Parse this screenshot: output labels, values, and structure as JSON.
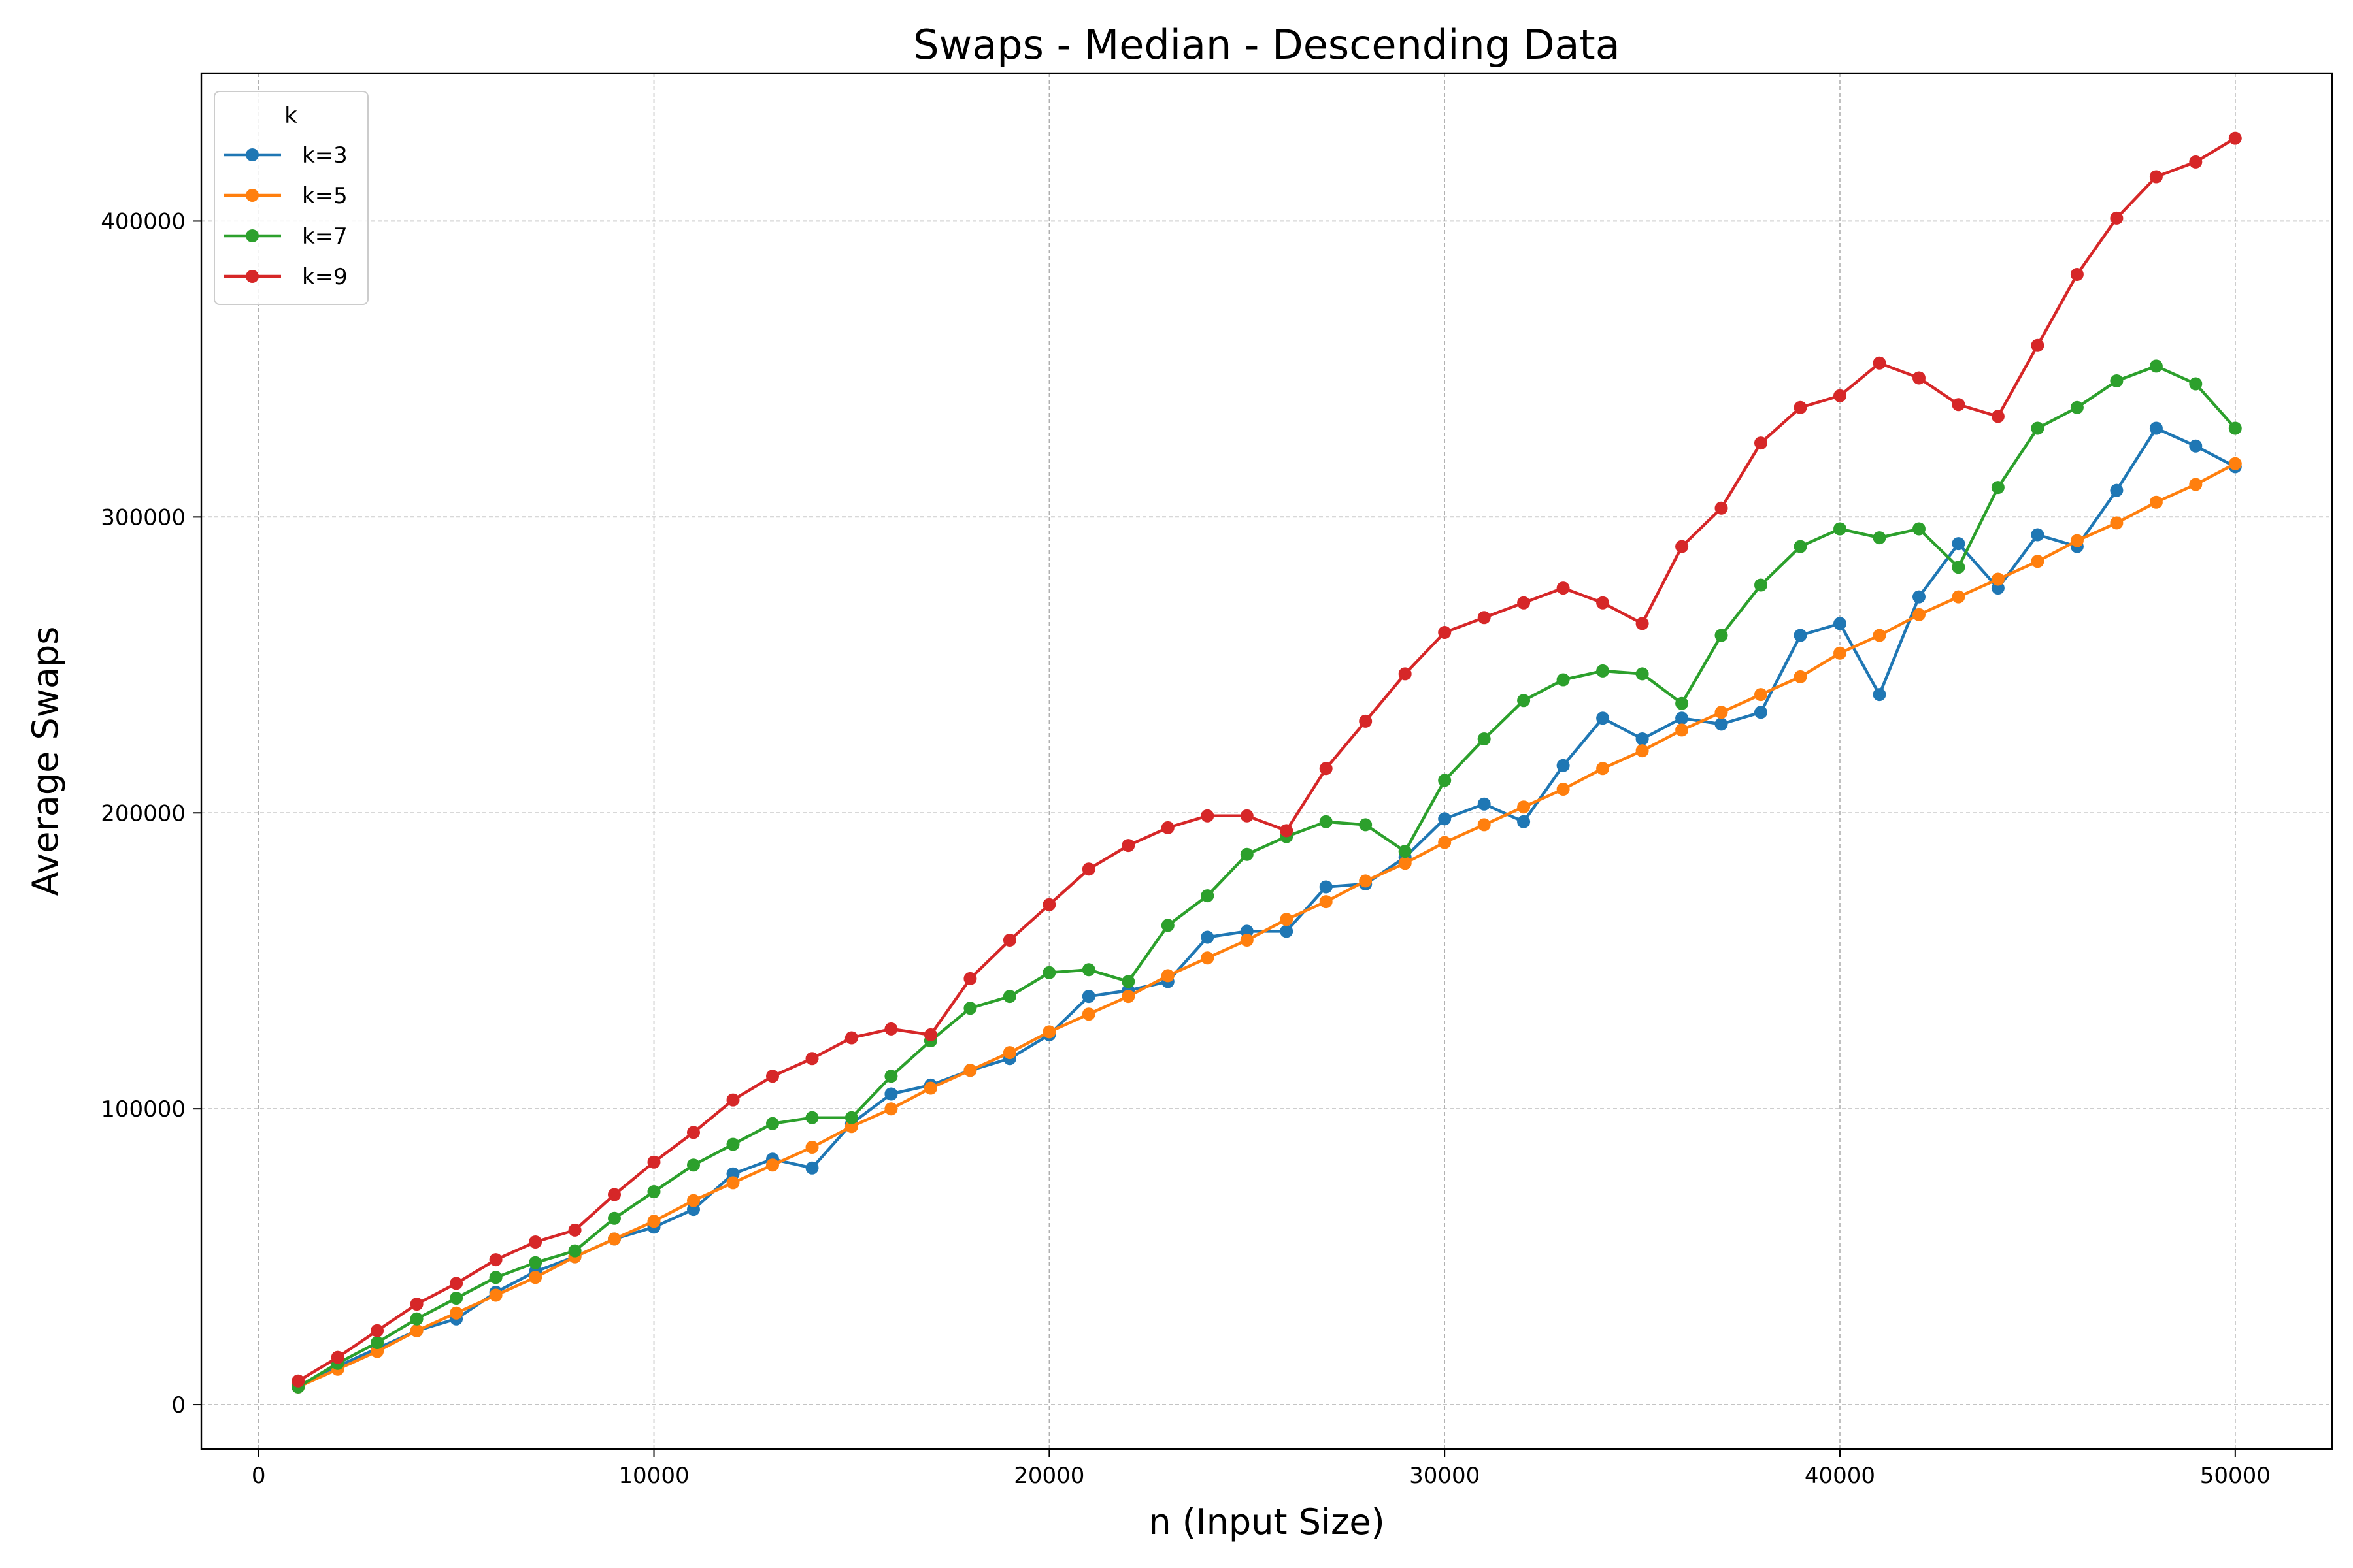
{
  "chart_data": {
    "type": "line",
    "title": "Swaps - Median - Descending Data",
    "xlabel": "n (Input Size)",
    "ylabel": "Average Swaps",
    "xlim": [
      -1450,
      52450
    ],
    "ylim": [
      -15000,
      450000
    ],
    "xticks": [
      0,
      10000,
      20000,
      30000,
      40000,
      50000
    ],
    "yticks": [
      0,
      100000,
      200000,
      300000,
      400000
    ],
    "grid": true,
    "legend": {
      "title": "k",
      "placement": "top-left"
    },
    "x": [
      1000,
      2000,
      3000,
      4000,
      5000,
      6000,
      7000,
      8000,
      9000,
      10000,
      11000,
      12000,
      13000,
      14000,
      15000,
      16000,
      17000,
      18000,
      19000,
      20000,
      21000,
      22000,
      23000,
      24000,
      25000,
      26000,
      27000,
      28000,
      29000,
      30000,
      31000,
      32000,
      33000,
      34000,
      35000,
      36000,
      37000,
      38000,
      39000,
      40000,
      41000,
      42000,
      43000,
      44000,
      45000,
      46000,
      47000,
      48000,
      49000,
      50000
    ],
    "series": [
      {
        "name": "k=3",
        "color": "#1f77b4",
        "values": [
          6000,
          13000,
          19000,
          25000,
          29000,
          38000,
          45000,
          50000,
          56000,
          60000,
          66000,
          78000,
          83000,
          80000,
          95000,
          105000,
          108000,
          113000,
          117000,
          125000,
          138000,
          140000,
          143000,
          158000,
          160000,
          160000,
          175000,
          176000,
          185000,
          198000,
          203000,
          197000,
          216000,
          232000,
          225000,
          232000,
          230000,
          234000,
          260000,
          264000,
          240000,
          273000,
          291000,
          276000,
          294000,
          290000,
          309000,
          330000,
          324000,
          317000
        ]
      },
      {
        "name": "k=5",
        "color": "#ff7f0e",
        "values": [
          6000,
          12000,
          18000,
          25000,
          31000,
          37000,
          43000,
          50000,
          56000,
          62000,
          69000,
          75000,
          81000,
          87000,
          94000,
          100000,
          107000,
          113000,
          119000,
          126000,
          132000,
          138000,
          145000,
          151000,
          157000,
          164000,
          170000,
          177000,
          183000,
          190000,
          196000,
          202000,
          208000,
          215000,
          221000,
          228000,
          234000,
          240000,
          246000,
          254000,
          260000,
          267000,
          273000,
          279000,
          285000,
          292000,
          298000,
          305000,
          311000,
          318000
        ]
      },
      {
        "name": "k=7",
        "color": "#2ca02c",
        "values": [
          6000,
          14000,
          21000,
          29000,
          36000,
          43000,
          48000,
          52000,
          63000,
          72000,
          81000,
          88000,
          95000,
          97000,
          97000,
          111000,
          123000,
          134000,
          138000,
          146000,
          147000,
          143000,
          162000,
          172000,
          186000,
          192000,
          197000,
          196000,
          187000,
          211000,
          225000,
          238000,
          245000,
          248000,
          247000,
          237000,
          260000,
          277000,
          290000,
          296000,
          293000,
          296000,
          283000,
          310000,
          330000,
          337000,
          346000,
          351000,
          345000,
          330000
        ]
      },
      {
        "name": "k=9",
        "color": "#d62728",
        "values": [
          8000,
          16000,
          25000,
          34000,
          41000,
          49000,
          55000,
          59000,
          71000,
          82000,
          92000,
          103000,
          111000,
          117000,
          124000,
          127000,
          125000,
          144000,
          157000,
          169000,
          181000,
          189000,
          195000,
          199000,
          199000,
          194000,
          215000,
          231000,
          247000,
          261000,
          266000,
          271000,
          276000,
          271000,
          264000,
          290000,
          303000,
          325000,
          337000,
          341000,
          352000,
          347000,
          338000,
          334000,
          358000,
          382000,
          401000,
          415000,
          420000,
          428000
        ]
      }
    ]
  }
}
